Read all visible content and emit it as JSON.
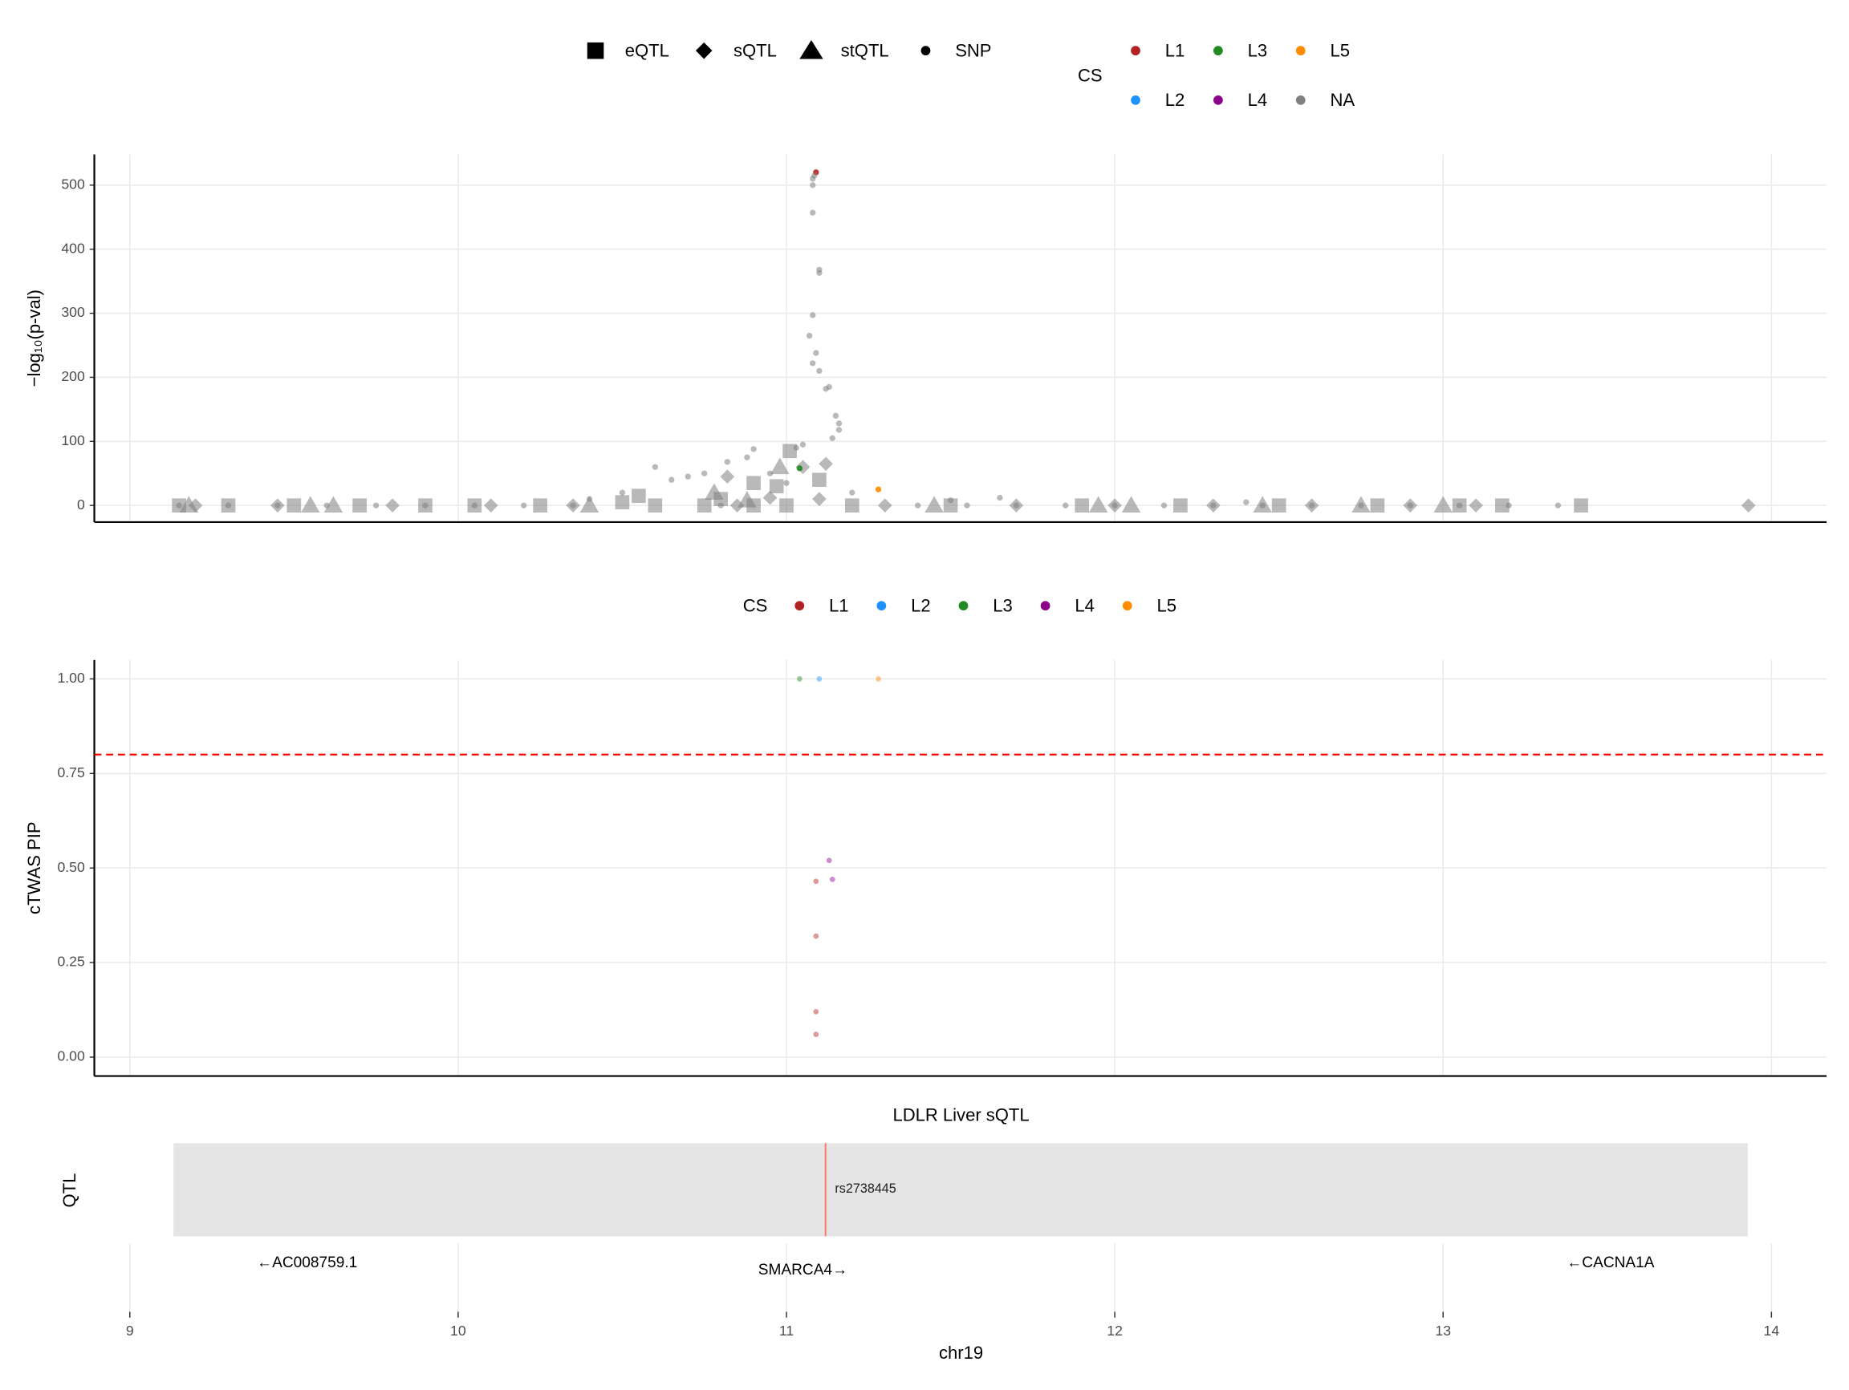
{
  "chart_data": [
    {
      "type": "scatter",
      "y_label": "−log₁₀(p-val)",
      "xlim": [
        8.892,
        14.168
      ],
      "xticks": [
        9,
        10,
        11,
        12,
        13,
        14
      ],
      "show_xtick_labels": false,
      "ylim": [
        -26,
        548
      ],
      "yticks": [
        0,
        100,
        200,
        300,
        400,
        500
      ],
      "grid": true,
      "cs_legend": {
        "title": "CS",
        "names": [
          "L1",
          "L2",
          "L3",
          "L4",
          "L5",
          "NA"
        ],
        "colors": [
          "#B22222",
          "#1E90FF",
          "#228B22",
          "#8B008B",
          "#FF8C00",
          "#808080"
        ]
      },
      "series": [
        {
          "name": "eQTL",
          "shape": "square",
          "cs": "NA",
          "x": [
            9.15,
            9.3,
            9.5,
            9.7,
            9.9,
            10.05,
            10.25,
            10.5,
            10.6,
            10.75,
            10.9,
            11.0,
            11.2,
            11.5,
            11.9,
            12.2,
            12.5,
            12.8,
            13.05,
            13.18,
            13.42,
            11.01,
            10.9,
            10.97,
            10.55,
            10.8,
            11.1
          ],
          "values": [
            0,
            0,
            0,
            0,
            0,
            0,
            0,
            5,
            0,
            0,
            0,
            0,
            0,
            0,
            0,
            0,
            0,
            0,
            0,
            0,
            0,
            85,
            35,
            30,
            15,
            10,
            40
          ]
        },
        {
          "name": "sQTL",
          "shape": "diamond",
          "cs": "NA",
          "x": [
            9.2,
            9.45,
            9.8,
            10.1,
            10.35,
            10.85,
            11.3,
            11.7,
            12.0,
            12.3,
            12.6,
            12.9,
            13.1,
            10.82,
            11.12,
            10.95,
            11.05,
            11.1,
            13.93
          ],
          "values": [
            0,
            0,
            0,
            0,
            0,
            0,
            0,
            0,
            0,
            0,
            0,
            0,
            0,
            45,
            65,
            12,
            60,
            10,
            0
          ]
        },
        {
          "name": "stQTL",
          "shape": "triangle",
          "cs": "NA",
          "x": [
            9.18,
            9.55,
            9.62,
            10.4,
            11.45,
            11.95,
            12.05,
            12.45,
            12.75,
            13.0,
            10.78,
            10.88,
            10.98
          ],
          "values": [
            0,
            0,
            0,
            0,
            0,
            0,
            0,
            0,
            0,
            0,
            20,
            8,
            60
          ]
        },
        {
          "name": "SNP",
          "shape": "circle",
          "x": [
            11.09,
            11.085,
            11.08,
            11.08,
            11.08,
            11.1,
            11.1,
            11.08,
            11.07,
            11.09,
            11.08,
            11.1,
            11.13,
            11.12,
            11.15,
            11.16,
            11.16,
            11.14,
            11.05,
            11.03,
            10.9,
            10.88,
            10.82,
            10.75,
            10.65,
            10.6,
            10.7,
            10.95,
            11.0,
            11.2,
            11.28,
            10.5,
            10.4,
            11.5,
            11.65,
            12.4,
            11.04,
            9.15,
            9.3,
            9.45,
            9.6,
            9.75,
            9.9,
            10.05,
            10.2,
            10.35,
            10.8,
            11.4,
            11.55,
            11.7,
            11.85,
            12.0,
            12.15,
            12.3,
            12.45,
            12.6,
            12.75,
            12.9,
            13.05,
            13.2,
            13.35
          ],
          "values": [
            520,
            515,
            510,
            500,
            457,
            368,
            363,
            297,
            265,
            238,
            222,
            210,
            185,
            182,
            140,
            128,
            118,
            105,
            95,
            90,
            88,
            75,
            68,
            50,
            40,
            60,
            45,
            50,
            35,
            20,
            25,
            20,
            10,
            8,
            12,
            5,
            58,
            0,
            0,
            0,
            0,
            0,
            0,
            0,
            0,
            0,
            0,
            0,
            0,
            0,
            0,
            0,
            0,
            0,
            0,
            0,
            0,
            0,
            0,
            0,
            0
          ],
          "cs": [
            "L1",
            "NA",
            "NA",
            "NA",
            "NA",
            "NA",
            "NA",
            "NA",
            "NA",
            "NA",
            "NA",
            "NA",
            "NA",
            "NA",
            "NA",
            "NA",
            "NA",
            "NA",
            "NA",
            "NA",
            "NA",
            "NA",
            "NA",
            "NA",
            "NA",
            "NA",
            "NA",
            "NA",
            "NA",
            "NA",
            "L5",
            "NA",
            "NA",
            "NA",
            "NA",
            "NA",
            "L3",
            "NA",
            "NA",
            "NA",
            "NA",
            "NA",
            "NA",
            "NA",
            "NA",
            "NA",
            "NA",
            "NA",
            "NA",
            "NA",
            "NA",
            "NA",
            "NA",
            "NA",
            "NA",
            "NA",
            "NA",
            "NA",
            "NA",
            "NA",
            "NA"
          ]
        }
      ]
    },
    {
      "type": "scatter",
      "y_label": "cTWAS PIP",
      "xlim": [
        8.892,
        14.168
      ],
      "xticks": [
        9,
        10,
        11,
        12,
        13,
        14
      ],
      "show_xtick_labels": false,
      "ylim": [
        -0.05,
        1.05
      ],
      "yticks": [
        {
          "value": 0,
          "label": "0.00"
        },
        0.25,
        {
          "value": 0.5,
          "label": "0.50"
        },
        0.75,
        {
          "value": 1,
          "label": "1.00"
        }
      ],
      "grid": true,
      "hline": 0.8,
      "hline_color": "#ff0000",
      "cs_legend": {
        "title": "CS",
        "names": [
          "L1",
          "L2",
          "L3",
          "L4",
          "L5"
        ],
        "colors": [
          "#B22222",
          "#1E90FF",
          "#228B22",
          "#8B008B",
          "#FF8C00"
        ]
      },
      "series": [
        {
          "shape": "circle",
          "x": [
            11.04,
            11.1,
            11.28,
            11.13,
            11.14,
            11.09,
            11.09,
            11.09,
            11.09
          ],
          "values": [
            1.0,
            1.0,
            1.0,
            0.52,
            0.47,
            0.465,
            0.32,
            0.12,
            0.06
          ],
          "cs": [
            "L3",
            "L2",
            "L5",
            "L4",
            "L4",
            "L1",
            "L1",
            "L1",
            "L1"
          ]
        }
      ]
    },
    {
      "type": "track",
      "title": "LDLR Liver sQTL",
      "y_label": "QTL",
      "x_label": "chr19",
      "xlim": [
        8.892,
        14.168
      ],
      "xticks": [
        9,
        10,
        11,
        12,
        13,
        14
      ],
      "show_xtick_labels": true,
      "region": [
        9.133,
        13.928
      ],
      "snp": {
        "name": "rs2738445",
        "x": 11.119,
        "color": "#f8766d"
      },
      "genes": {
        "names": [
          "←AC008759.1",
          "SMARCA4→",
          "←CACNA1A"
        ],
        "x": [
          9.54,
          11.05,
          13.51
        ]
      }
    }
  ]
}
